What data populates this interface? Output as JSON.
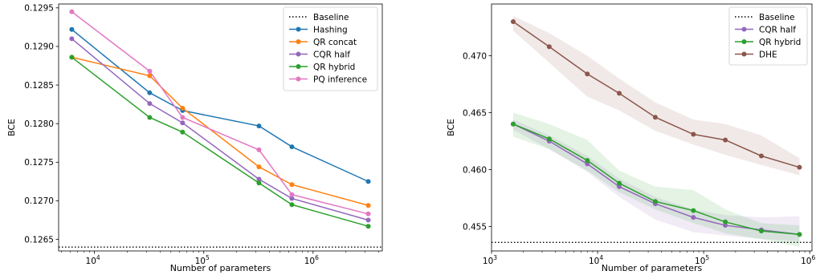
{
  "chart_data": [
    {
      "type": "line",
      "xscale": "log",
      "xlabel": "Number of parameters",
      "ylabel": "BCE",
      "xlim": [
        4700,
        4300000
      ],
      "ylim": [
        0.12635,
        0.12955
      ],
      "xticks": [
        {
          "value": 10000,
          "base": "10",
          "exp": "4"
        },
        {
          "value": 100000,
          "base": "10",
          "exp": "5"
        },
        {
          "value": 1000000,
          "base": "10",
          "exp": "6"
        }
      ],
      "yticks": [
        "0.1265",
        "0.1270",
        "0.1275",
        "0.1280",
        "0.1285",
        "0.1290",
        "0.1295"
      ],
      "legend_position": "top-right",
      "baseline": {
        "name": "Baseline",
        "value": 0.1264,
        "color": "#000000"
      },
      "series": [
        {
          "name": "Hashing",
          "color": "#1f77b4",
          "x": [
            6200,
            32000,
            64000,
            320000,
            640000,
            3200000
          ],
          "y": [
            0.12922,
            0.1284,
            0.12817,
            0.12797,
            0.1277,
            0.12725
          ]
        },
        {
          "name": "QR concat",
          "color": "#ff7f0e",
          "x": [
            6200,
            32000,
            64000,
            320000,
            640000,
            3200000
          ],
          "y": [
            0.12886,
            0.12862,
            0.1282,
            0.12744,
            0.12721,
            0.12694
          ]
        },
        {
          "name": "CQR half",
          "color": "#9467bd",
          "x": [
            6200,
            32000,
            64000,
            320000,
            640000,
            3200000
          ],
          "y": [
            0.1291,
            0.12826,
            0.12801,
            0.12728,
            0.12703,
            0.12675
          ]
        },
        {
          "name": "QR hybrid",
          "color": "#2ca02c",
          "x": [
            6200,
            32000,
            64000,
            320000,
            640000,
            3200000
          ],
          "y": [
            0.12886,
            0.12808,
            0.12789,
            0.12723,
            0.12695,
            0.12667
          ]
        },
        {
          "name": "PQ inference",
          "color": "#e377c2",
          "x": [
            6200,
            32000,
            64000,
            320000,
            640000,
            3200000
          ],
          "y": [
            0.12945,
            0.12868,
            0.12808,
            0.12766,
            0.12708,
            0.12683
          ]
        }
      ]
    },
    {
      "type": "line",
      "xscale": "log",
      "xlabel": "Number of parameters",
      "ylabel": "BCE",
      "xlim": [
        1000,
        1050000
      ],
      "ylim": [
        0.45285,
        0.47455
      ],
      "xticks": [
        {
          "value": 1000,
          "base": "10",
          "exp": "3"
        },
        {
          "value": 10000,
          "base": "10",
          "exp": "4"
        },
        {
          "value": 100000,
          "base": "10",
          "exp": "5"
        },
        {
          "value": 1000000,
          "base": "10",
          "exp": "6"
        }
      ],
      "yticks": [
        "0.455",
        "0.460",
        "0.465",
        "0.470"
      ],
      "legend_position": "top-right",
      "baseline": {
        "name": "Baseline",
        "value": 0.4536,
        "color": "#000000"
      },
      "series": [
        {
          "name": "CQR half",
          "color": "#9467bd",
          "x": [
            1600,
            3500,
            8000,
            16000,
            35000,
            80000,
            160000,
            350000,
            800000
          ],
          "y": [
            0.464,
            0.4625,
            0.4605,
            0.4585,
            0.457,
            0.4558,
            0.4551,
            0.4547,
            0.4543
          ],
          "lower": [
            0.4635,
            0.4618,
            0.4598,
            0.4576,
            0.4556,
            0.4545,
            0.4542,
            0.4539,
            0.4537
          ],
          "upper": [
            0.4644,
            0.463,
            0.4612,
            0.4592,
            0.4576,
            0.4565,
            0.456,
            0.4558,
            0.4559
          ]
        },
        {
          "name": "QR hybrid",
          "color": "#2ca02c",
          "x": [
            1600,
            3500,
            8000,
            16000,
            35000,
            80000,
            160000,
            350000,
            800000
          ],
          "y": [
            0.464,
            0.4627,
            0.4608,
            0.4588,
            0.4572,
            0.4564,
            0.4554,
            0.4546,
            0.4543
          ],
          "lower": [
            0.4629,
            0.4618,
            0.4599,
            0.458,
            0.4565,
            0.4553,
            0.4544,
            0.4539,
            0.4532
          ],
          "upper": [
            0.465,
            0.464,
            0.4626,
            0.4599,
            0.4585,
            0.4582,
            0.4565,
            0.4553,
            0.4551
          ]
        },
        {
          "name": "DHE",
          "color": "#8c564b",
          "x": [
            1600,
            3500,
            8000,
            16000,
            35000,
            80000,
            160000,
            350000,
            800000
          ],
          "y": [
            0.473,
            0.4708,
            0.4684,
            0.4667,
            0.4646,
            0.4631,
            0.4626,
            0.4612,
            0.4602
          ],
          "lower": [
            0.4722,
            0.4694,
            0.4664,
            0.4652,
            0.4634,
            0.4622,
            0.4613,
            0.4604,
            0.4595
          ],
          "upper": [
            0.4735,
            0.472,
            0.47,
            0.468,
            0.4659,
            0.4644,
            0.464,
            0.463,
            0.461
          ]
        }
      ]
    }
  ]
}
